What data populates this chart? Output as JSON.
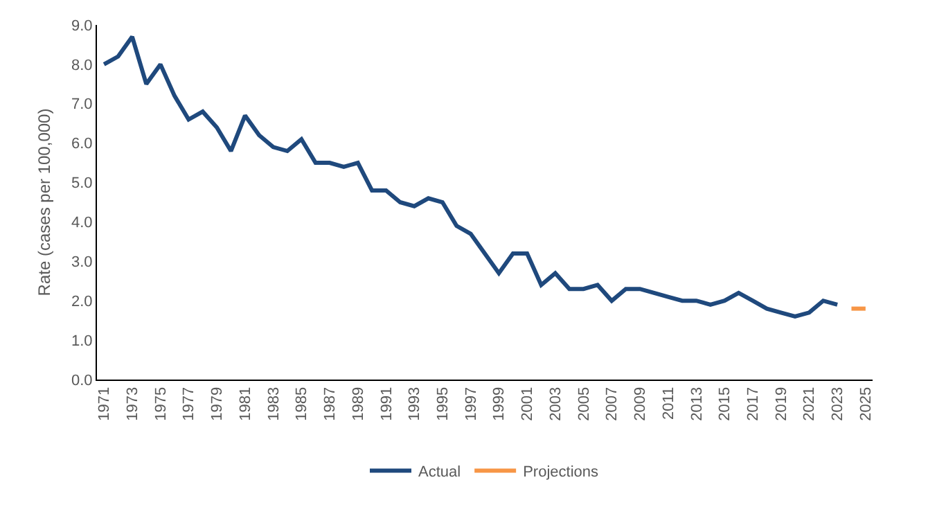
{
  "chart_data": {
    "type": "line",
    "ylabel": "Rate (cases per 100,000)",
    "x": [
      1971,
      1972,
      1973,
      1974,
      1975,
      1976,
      1977,
      1978,
      1979,
      1980,
      1981,
      1982,
      1983,
      1984,
      1985,
      1986,
      1987,
      1988,
      1989,
      1990,
      1991,
      1992,
      1993,
      1994,
      1995,
      1996,
      1997,
      1998,
      1999,
      2000,
      2001,
      2002,
      2003,
      2004,
      2005,
      2006,
      2007,
      2008,
      2009,
      2010,
      2011,
      2012,
      2013,
      2014,
      2015,
      2016,
      2017,
      2018,
      2019,
      2020,
      2021,
      2022,
      2023
    ],
    "series": [
      {
        "name": "Actual",
        "color": "#1f497d",
        "values": [
          8.0,
          8.2,
          8.7,
          7.5,
          8.0,
          7.2,
          6.6,
          6.8,
          6.4,
          5.8,
          6.7,
          6.2,
          5.9,
          5.8,
          6.1,
          5.5,
          5.5,
          5.4,
          5.5,
          4.8,
          4.8,
          4.5,
          4.4,
          4.6,
          4.5,
          3.9,
          3.7,
          3.2,
          2.7,
          3.2,
          3.2,
          2.4,
          2.7,
          2.3,
          2.3,
          2.4,
          2.0,
          2.3,
          2.3,
          2.2,
          2.1,
          2.0,
          2.0,
          1.9,
          2.0,
          2.2,
          2.0,
          1.8,
          1.7,
          1.6,
          1.7,
          2.0,
          1.9
        ]
      },
      {
        "name": "Projections",
        "color": "#f79646",
        "x": [
          2024,
          2025
        ],
        "values": [
          1.8,
          1.8
        ]
      }
    ],
    "xlim": [
      1970.5,
      2025.5
    ],
    "xticks": [
      1971,
      1973,
      1975,
      1977,
      1979,
      1981,
      1983,
      1985,
      1987,
      1989,
      1991,
      1993,
      1995,
      1997,
      1999,
      2001,
      2003,
      2005,
      2007,
      2009,
      2011,
      2013,
      2015,
      2017,
      2019,
      2021,
      2023,
      2025
    ],
    "ylim": [
      0,
      9
    ],
    "yticks": [
      {
        "value": 0,
        "label": "0.0"
      },
      {
        "value": 1,
        "label": "1.0"
      },
      {
        "value": 2,
        "label": "2.0"
      },
      {
        "value": 3,
        "label": "3.0"
      },
      {
        "value": 4,
        "label": "4.0"
      },
      {
        "value": 5,
        "label": "5.0"
      },
      {
        "value": 6,
        "label": "6.0"
      },
      {
        "value": 7,
        "label": "7.0"
      },
      {
        "value": 8,
        "label": "8.0"
      },
      {
        "value": 9,
        "label": "9.0"
      }
    ],
    "grid": false,
    "legend": "bottom",
    "marker": "none",
    "line_style": "solid"
  }
}
